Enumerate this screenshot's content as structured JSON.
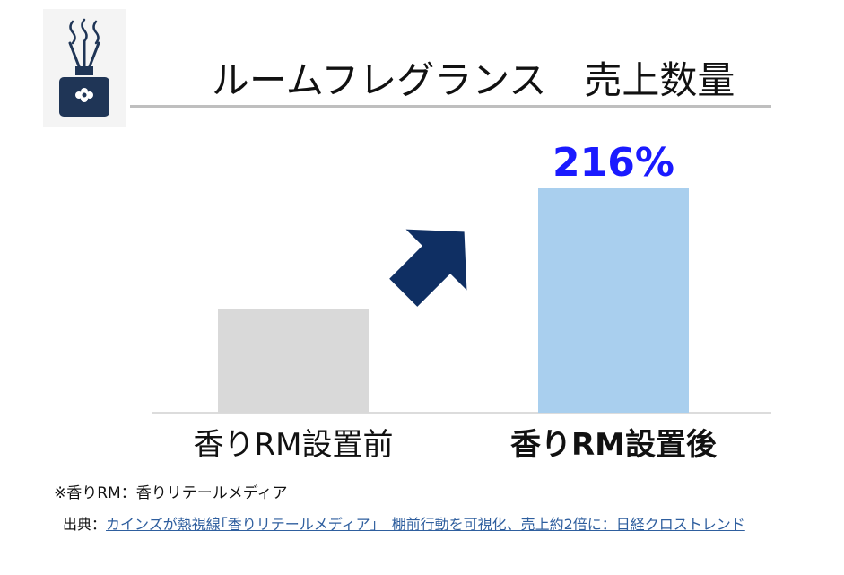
{
  "title": "ルームフレグランス　売上数量",
  "icon": "reed-diffuser-icon",
  "chart_data": {
    "type": "bar",
    "categories": [
      "香りRM設置前",
      "香りRM設置後"
    ],
    "values": [
      100,
      216
    ],
    "data_labels": [
      "",
      "216%"
    ],
    "bar_colors": [
      "#d9d9d9",
      "#a9cfee"
    ],
    "label_color": "#1a1aff",
    "arrow_color": "#0f2f63",
    "ylim": [
      0,
      216
    ],
    "grid": false
  },
  "note": "※香りRM：香りリテールメディア",
  "source": {
    "prefix": "出典：",
    "link_text": "カインズが熱視線｢香りリテールメディア｣　棚前行動を可視化、売上約2倍に：日経クロストレンド"
  }
}
